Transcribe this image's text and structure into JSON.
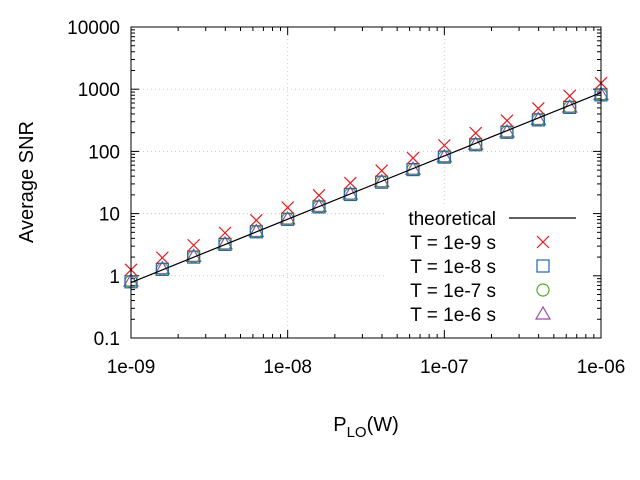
{
  "chart_data": {
    "type": "scatter",
    "title": "",
    "xlabel_main": "P",
    "xlabel_sub": "LO",
    "xlabel_unit": "(W)",
    "ylabel": "Average SNR",
    "xscale": "log",
    "yscale": "log",
    "xlim": [
      1e-09,
      1e-06
    ],
    "ylim": [
      0.1,
      10000
    ],
    "grid": true,
    "legend_position": "center-right",
    "x_ticks": [
      1e-09,
      1e-08,
      1e-07,
      1e-06
    ],
    "x_tick_labels": [
      "1e-09",
      "1e-08",
      "1e-07",
      "1e-06"
    ],
    "y_ticks": [
      0.1,
      1,
      10,
      100,
      1000,
      10000
    ],
    "y_tick_labels": [
      "0.1",
      "1",
      "10",
      "100",
      "1000",
      "10000"
    ],
    "x": [
      1e-09,
      1.585e-09,
      2.512e-09,
      3.981e-09,
      6.31e-09,
      1e-08,
      1.585e-08,
      2.512e-08,
      3.981e-08,
      6.31e-08,
      1e-07,
      1.585e-07,
      2.512e-07,
      3.981e-07,
      6.31e-07,
      1e-06
    ],
    "series": [
      {
        "name": "theoretical",
        "kind": "line",
        "color": "#000000",
        "x": [
          1e-09,
          1e-06
        ],
        "values": [
          0.78,
          880
        ]
      },
      {
        "name": "T = 1e-9 s",
        "kind": "marker",
        "marker": "cross",
        "color": "#e41a1c",
        "values": [
          1.25,
          1.95,
          3.1,
          4.9,
          7.8,
          12.5,
          19.7,
          31,
          49,
          78,
          125,
          197,
          312,
          490,
          780,
          1250
        ]
      },
      {
        "name": "T = 1e-8 s",
        "kind": "marker",
        "marker": "square",
        "color": "#2166ac",
        "values": [
          0.8,
          1.27,
          2.0,
          3.2,
          5.1,
          8.1,
          12.8,
          20.3,
          32,
          51,
          81,
          128,
          203,
          321,
          510,
          810
        ]
      },
      {
        "name": "T = 1e-7 s",
        "kind": "marker",
        "marker": "circle",
        "color": "#4dac26",
        "values": [
          0.81,
          1.28,
          2.03,
          3.22,
          5.1,
          8.1,
          12.9,
          20.4,
          32.3,
          51.2,
          81,
          129,
          204,
          323,
          512,
          815
        ]
      },
      {
        "name": "T = 1e-6 s",
        "kind": "marker",
        "marker": "triangle",
        "color": "#984ea3",
        "values": [
          0.82,
          1.3,
          2.05,
          3.25,
          5.15,
          8.2,
          13,
          20.6,
          32.6,
          51.6,
          82,
          130,
          206,
          326,
          516,
          820
        ]
      }
    ]
  }
}
